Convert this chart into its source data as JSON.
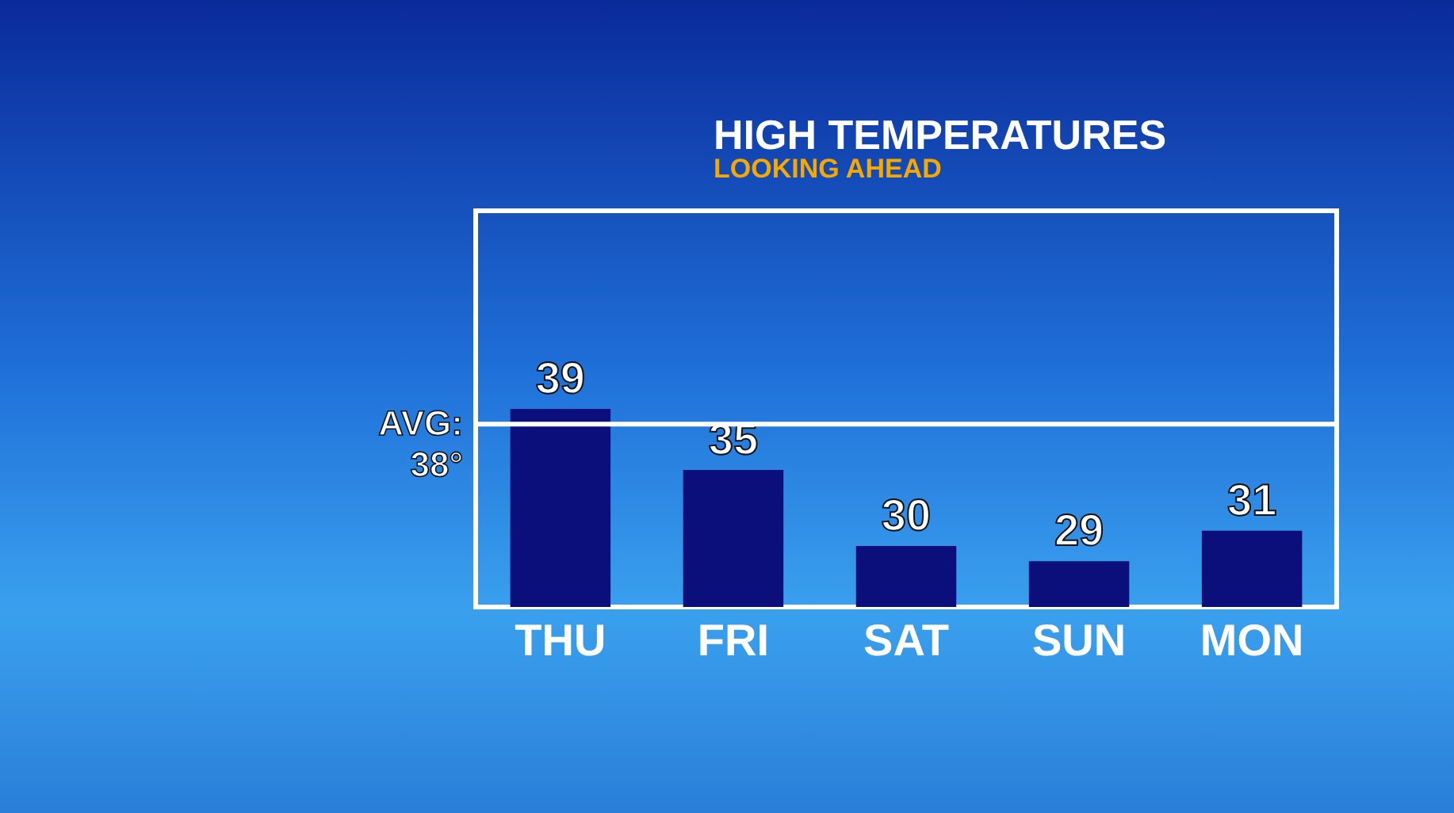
{
  "chart_data": {
    "type": "bar",
    "title": "HIGH TEMPERATURES",
    "subtitle": "LOOKING AHEAD",
    "categories": [
      "THU",
      "FRI",
      "SAT",
      "SUN",
      "MON"
    ],
    "values": [
      39,
      35,
      30,
      29,
      31
    ],
    "color": "#0b0f7c",
    "data_labels": true,
    "ylim": [
      26,
      52
    ],
    "ref_lines": [
      {
        "axis": "y",
        "value": 38,
        "label": "AVG: 38°",
        "color": "#ffffff"
      }
    ]
  }
}
